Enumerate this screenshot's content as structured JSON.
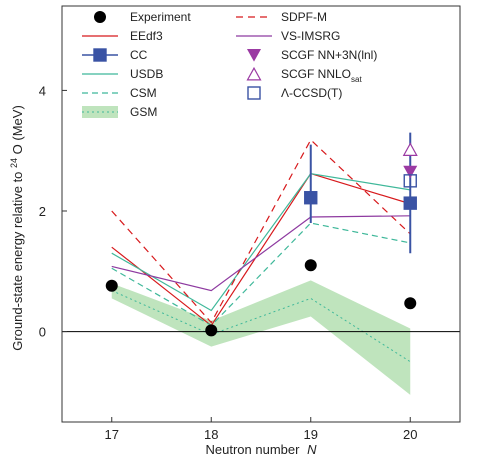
{
  "chart_data": {
    "type": "line",
    "title": "",
    "xlabel": "Neutron number",
    "xlabel_italic": "N",
    "ylabel_parts": [
      "Ground-state energy relative to ",
      "24",
      "O (MeV)"
    ],
    "x": [
      17,
      18,
      19,
      20
    ],
    "xlim": [
      16.5,
      20.5
    ],
    "ylim": [
      -1.5,
      5.4
    ],
    "yticks": [
      0,
      2,
      4
    ],
    "legend_position": "top",
    "series": [
      {
        "name": "Experiment",
        "kind": "dots",
        "color": "#000000",
        "values": [
          0.76,
          0.02,
          1.1,
          0.47
        ]
      },
      {
        "name": "EEdf3",
        "kind": "line",
        "color": "#d7191c",
        "dash": "",
        "values": [
          1.4,
          0.1,
          2.62,
          2.12
        ]
      },
      {
        "name": "CC",
        "kind": "squares",
        "color": "#3a53a4",
        "x": [
          19,
          20
        ],
        "values": [
          2.22,
          2.13
        ],
        "err_low": [
          1.8,
          1.3
        ],
        "err_high": [
          3.1,
          3.3
        ]
      },
      {
        "name": "USDB",
        "kind": "line",
        "color": "#3fb89a",
        "dash": "",
        "values": [
          1.3,
          0.35,
          2.62,
          2.35
        ]
      },
      {
        "name": "CSM",
        "kind": "line",
        "color": "#3fb89a",
        "dash": "6,4",
        "values": [
          1.05,
          0.1,
          1.8,
          1.47
        ]
      },
      {
        "name": "GSM",
        "kind": "band",
        "color": "#bfe4bd",
        "lower": [
          0.55,
          -0.25,
          0.25,
          -1.05
        ],
        "upper": [
          0.8,
          0.18,
          0.85,
          0.05
        ],
        "central": [
          0.68,
          -0.05,
          0.55,
          -0.5
        ]
      },
      {
        "name": "SDPF-M",
        "kind": "line",
        "color": "#d7191c",
        "dash": "7,5",
        "values": [
          2.0,
          0.15,
          3.18,
          1.62
        ]
      },
      {
        "name": "VS-IMSRG",
        "kind": "line",
        "color": "#8e3aa0",
        "dash": "",
        "values": [
          1.08,
          0.68,
          1.9,
          1.92
        ]
      },
      {
        "name": "SCGF NN+3N(lnl)",
        "kind": "triangle-down-filled",
        "color": "#9b3aa3",
        "x": [
          20
        ],
        "values": [
          2.65
        ]
      },
      {
        "name": "SCGF NNLO",
        "name_sub": "sat",
        "kind": "triangle-up-open",
        "color": "#9b3aa3",
        "x": [
          20
        ],
        "values": [
          3.02
        ]
      },
      {
        "name": "Λ-CCSD(T)",
        "kind": "square-open",
        "color": "#3a53a4",
        "x": [
          20
        ],
        "values": [
          2.5
        ]
      }
    ]
  }
}
